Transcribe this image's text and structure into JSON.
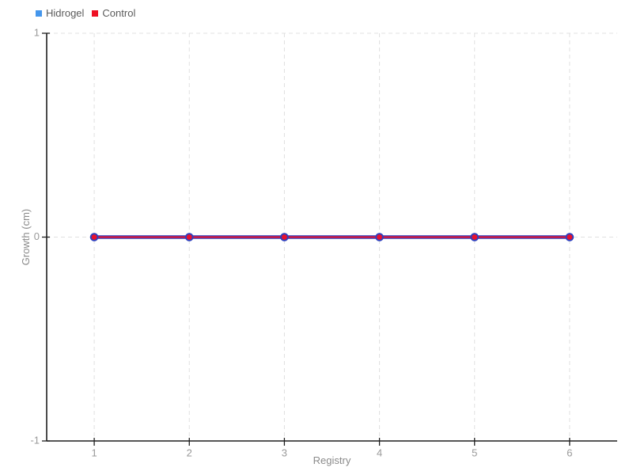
{
  "legend": {
    "items": [
      {
        "label": "Hidrogel",
        "color": "#4596ec"
      },
      {
        "label": "Control",
        "color": "#ee1124"
      }
    ]
  },
  "axes": {
    "x_label": "Registry",
    "y_label": "Growth (cm)",
    "x_ticks": [
      "1",
      "2",
      "3",
      "4",
      "5",
      "6"
    ],
    "y_ticks": [
      "1",
      "0",
      "-1"
    ]
  },
  "chart_data": {
    "type": "line",
    "title": "",
    "xlabel": "Registry",
    "ylabel": "Growth (cm)",
    "x": [
      1,
      2,
      3,
      4,
      5,
      6
    ],
    "series": [
      {
        "name": "Hidrogel",
        "values": [
          0,
          0,
          0,
          0,
          0,
          0
        ],
        "color": "#4596ec",
        "line_color": "#2e3fbe",
        "line_width": 4.5,
        "marker_radius": 5.3
      },
      {
        "name": "Control",
        "values": [
          0,
          0,
          0,
          0,
          0,
          0
        ],
        "color": "#ee1124",
        "line_color": "#e8112d",
        "line_width": 2,
        "marker_radius": 3.4
      }
    ],
    "xlim": [
      0.5,
      6.5
    ],
    "ylim": [
      -1,
      1
    ],
    "y_tick_values": [
      1,
      0,
      -1
    ],
    "grid": "dashed",
    "legend_position": "top-left"
  },
  "style": {
    "grid_color": "#e0e0e0",
    "axis_color": "#1f1f1f",
    "tick_label_color": "#999999",
    "axis_label_color": "#8a8a8a"
  }
}
